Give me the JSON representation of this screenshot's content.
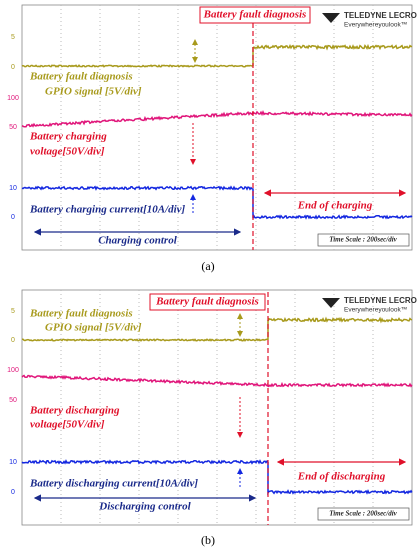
{
  "panels": [
    {
      "caption": "(a)",
      "title": "Battery fault diagnosis",
      "brand": "TELEDYNE LECROY",
      "tagline": "Everywhereyoulook™",
      "ticks": [
        "5",
        "0",
        "100",
        "50",
        "10",
        "0"
      ],
      "gpio_label": [
        "Battery fault diagnosis",
        "GPIO signal [5V/div]"
      ],
      "voltage_label": [
        "Battery charging",
        "voltage[50V/div]"
      ],
      "current_label": "Battery charging current[10A/div]",
      "end_label": "End of charging",
      "control_label": "Charging control",
      "time_scale": "Time Scale : 200sec/div"
    },
    {
      "caption": "(b)",
      "title": "Battery fault diagnosis",
      "brand": "TELEDYNE LECROY",
      "tagline": "Everywhereyoulook™",
      "ticks": [
        "5",
        "0",
        "100",
        "50",
        "10",
        "0"
      ],
      "gpio_label": [
        "Battery fault diagnosis",
        "GPIO signal [5V/div]"
      ],
      "voltage_label": [
        "Battery discharging",
        "voltage[50V/div]"
      ],
      "current_label": "Battery discharging current[10A/div]",
      "end_label": "End of discharging",
      "control_label": "Discharging control",
      "time_scale": "Time Scale : 200sec/div"
    }
  ]
}
